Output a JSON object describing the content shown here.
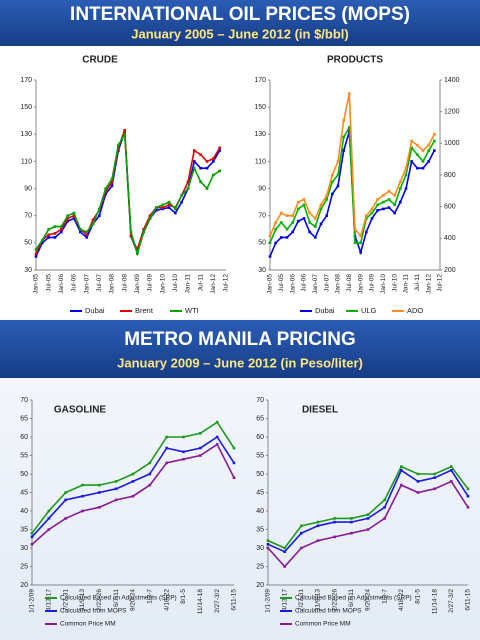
{
  "top_banner": {
    "title": "INTERNATIONAL OIL PRICES (MOPS)",
    "subtitle": "January 2005 – June 2012 (in $/bbl)"
  },
  "bottom_banner": {
    "title": "METRO MANILA PRICING",
    "subtitle": "January 2009 – June 2012 (in Peso/liter)"
  },
  "chart_data": [
    {
      "type": "line",
      "title": "CRUDE",
      "categories": [
        "Jan-05",
        null,
        "Jul-05",
        null,
        "Jan-06",
        null,
        "Jul-06",
        null,
        "Jan-07",
        null,
        "Jul-07",
        null,
        "Jan-08",
        null,
        "Jul-08",
        null,
        "Jan-09",
        null,
        "Jul-09",
        null,
        "Jan-10",
        null,
        "Jul-10",
        null,
        "Jan-11",
        null,
        "Jul-11",
        null,
        "Jan-12",
        null,
        "Jul-12"
      ],
      "series": [
        {
          "name": "Dubai",
          "color": "#0000ee",
          "values": [
            40,
            50,
            54,
            54,
            58,
            66,
            68,
            58,
            54,
            64,
            70,
            86,
            92,
            118,
            132,
            55,
            43,
            58,
            68,
            74,
            75,
            76,
            72,
            80,
            90,
            110,
            105,
            105,
            110,
            118,
            null
          ]
        },
        {
          "name": "Brent",
          "color": "#e00000",
          "values": [
            42,
            52,
            56,
            57,
            60,
            68,
            70,
            60,
            56,
            67,
            74,
            88,
            95,
            120,
            133,
            55,
            45,
            60,
            70,
            76,
            76,
            78,
            76,
            85,
            95,
            118,
            115,
            110,
            112,
            120,
            null
          ]
        },
        {
          "name": "WTI",
          "color": "#00a000",
          "values": [
            45,
            52,
            60,
            62,
            62,
            70,
            72,
            60,
            58,
            64,
            75,
            90,
            97,
            122,
            130,
            58,
            42,
            58,
            68,
            76,
            78,
            80,
            75,
            85,
            90,
            105,
            95,
            90,
            100,
            103,
            null
          ]
        }
      ],
      "ylim": [
        30,
        170
      ],
      "yticks": [
        30,
        50,
        70,
        90,
        110,
        130,
        150,
        170
      ],
      "grid": false
    },
    {
      "type": "line",
      "title": "PRODUCTS",
      "categories": [
        "Jan-05",
        null,
        "Jul-05",
        null,
        "Jan-06",
        null,
        "Jul-06",
        null,
        "Jan-07",
        null,
        "Jul-07",
        null,
        "Jan-08",
        null,
        "Jul-08",
        null,
        "Jan-09",
        null,
        "Jul-09",
        null,
        "Jan-10",
        null,
        "Jul-10",
        null,
        "Jan-11",
        null,
        "Jul-11",
        null,
        "Jan-12",
        null,
        "Jul-12"
      ],
      "series": [
        {
          "name": "Dubai",
          "color": "#0000ee",
          "values": [
            40,
            50,
            54,
            54,
            58,
            66,
            68,
            58,
            54,
            64,
            70,
            86,
            92,
            118,
            132,
            55,
            43,
            58,
            68,
            74,
            75,
            76,
            72,
            80,
            90,
            110,
            105,
            105,
            110,
            118,
            null
          ]
        },
        {
          "name": "ULG",
          "color": "#00b000",
          "values": [
            50,
            60,
            65,
            60,
            65,
            75,
            78,
            65,
            62,
            75,
            82,
            95,
            100,
            128,
            135,
            50,
            50,
            68,
            72,
            78,
            80,
            82,
            78,
            90,
            100,
            120,
            115,
            110,
            118,
            125,
            null
          ]
        },
        {
          "name": "ADO",
          "color": "#ff8c1a",
          "values": [
            55,
            65,
            72,
            70,
            70,
            80,
            82,
            72,
            68,
            78,
            85,
            100,
            110,
            140,
            160,
            60,
            55,
            70,
            75,
            82,
            85,
            88,
            85,
            95,
            105,
            125,
            122,
            118,
            122,
            130,
            null
          ]
        }
      ],
      "ylim": [
        30,
        170
      ],
      "yticks": [
        30,
        50,
        70,
        90,
        110,
        130,
        150,
        170
      ],
      "y2lim": [
        200,
        1400
      ],
      "y2ticks": [
        200,
        400,
        600,
        800,
        1000,
        1200,
        1400
      ],
      "grid": false
    },
    {
      "type": "line",
      "title": "GASOLINE",
      "categories": [
        "1/1-2/09",
        "4/13-17",
        "7/27-31",
        "11/9-13",
        "2/22-26",
        "6/7-11",
        "9/20-24",
        "1/3-7",
        "4/18-22",
        "8/1-5",
        "11/14-18",
        "2/27-3/2",
        "6/11-15"
      ],
      "series": [
        {
          "name": "Calculated Based on Adjustments (SRP)",
          "color": "#1a9a1a",
          "values": [
            34,
            40,
            45,
            47,
            47,
            48,
            50,
            53,
            60,
            60,
            61,
            64,
            57
          ]
        },
        {
          "name": "Calculated from MOPS",
          "color": "#1a1ae0",
          "values": [
            33,
            38,
            43,
            44,
            45,
            46,
            48,
            50,
            57,
            56,
            57,
            60,
            53
          ]
        },
        {
          "name": "Common Price MM",
          "color": "#8a1a9a",
          "values": [
            31,
            35,
            38,
            40,
            41,
            43,
            44,
            47,
            53,
            54,
            55,
            58,
            49
          ]
        }
      ],
      "ylim": [
        20,
        70
      ],
      "yticks": [
        20,
        25,
        30,
        35,
        40,
        45,
        50,
        55,
        60,
        65,
        70
      ],
      "grid": false
    },
    {
      "type": "line",
      "title": "DIESEL",
      "categories": [
        "1/1-2/09",
        "4/13-17",
        "7/27-31",
        "11/9-13",
        "2/22-26",
        "6/7-11",
        "9/20-24",
        "1/3-7",
        "4/18-22",
        "8/1-5",
        "11/14-18",
        "2/27-3/2",
        "6/11-15"
      ],
      "series": [
        {
          "name": "Calculated Based on Adjustments (SRP)",
          "color": "#1a9a1a",
          "values": [
            32,
            30,
            36,
            37,
            38,
            38,
            39,
            43,
            52,
            50,
            50,
            52,
            46
          ]
        },
        {
          "name": "Calculated from MOPS",
          "color": "#1a1ae0",
          "values": [
            31,
            29,
            34,
            36,
            37,
            37,
            38,
            41,
            51,
            48,
            49,
            51,
            44
          ]
        },
        {
          "name": "Common Price MM",
          "color": "#8a1a9a",
          "values": [
            30,
            25,
            30,
            32,
            33,
            34,
            35,
            38,
            47,
            45,
            46,
            48,
            41
          ]
        }
      ],
      "ylim": [
        20,
        70
      ],
      "yticks": [
        20,
        25,
        30,
        35,
        40,
        45,
        50,
        55,
        60,
        65,
        70
      ],
      "grid": false
    }
  ]
}
